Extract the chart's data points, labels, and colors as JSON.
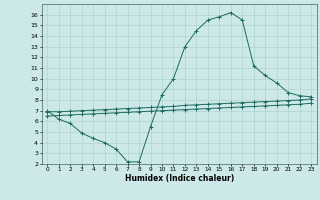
{
  "xlabel": "Humidex (Indice chaleur)",
  "bg_color": "#cce8e8",
  "grid_color": "#aacccc",
  "line_color": "#1e6b5e",
  "xlim": [
    -0.5,
    23.5
  ],
  "ylim": [
    2,
    17
  ],
  "xticks": [
    0,
    1,
    2,
    3,
    4,
    5,
    6,
    7,
    8,
    9,
    10,
    11,
    12,
    13,
    14,
    15,
    16,
    17,
    18,
    19,
    20,
    21,
    22,
    23
  ],
  "yticks": [
    2,
    3,
    4,
    5,
    6,
    7,
    8,
    9,
    10,
    11,
    12,
    13,
    14,
    15,
    16
  ],
  "line1_x": [
    0,
    1,
    2,
    3,
    4,
    5,
    6,
    7,
    8,
    9,
    10,
    11,
    12,
    13,
    14,
    15,
    16,
    17,
    18,
    19,
    20,
    21,
    22,
    23
  ],
  "line1_y": [
    7.0,
    6.2,
    5.8,
    4.9,
    4.4,
    4.0,
    3.4,
    2.2,
    2.2,
    5.5,
    8.5,
    10.0,
    13.0,
    14.5,
    15.5,
    15.8,
    16.2,
    15.5,
    11.2,
    10.3,
    9.6,
    8.7,
    8.4,
    8.3
  ],
  "line2_x": [
    0,
    1,
    2,
    3,
    4,
    5,
    6,
    7,
    8,
    9,
    10,
    11,
    12,
    13,
    14,
    15,
    16,
    17,
    18,
    19,
    20,
    21,
    22,
    23
  ],
  "line2_y": [
    6.9,
    6.9,
    6.95,
    7.0,
    7.05,
    7.1,
    7.15,
    7.2,
    7.25,
    7.3,
    7.35,
    7.4,
    7.5,
    7.55,
    7.6,
    7.65,
    7.7,
    7.75,
    7.8,
    7.85,
    7.9,
    7.95,
    8.0,
    8.1
  ],
  "line3_x": [
    0,
    1,
    2,
    3,
    4,
    5,
    6,
    7,
    8,
    9,
    10,
    11,
    12,
    13,
    14,
    15,
    16,
    17,
    18,
    19,
    20,
    21,
    22,
    23
  ],
  "line3_y": [
    6.5,
    6.55,
    6.6,
    6.65,
    6.7,
    6.75,
    6.8,
    6.85,
    6.9,
    6.95,
    7.0,
    7.05,
    7.1,
    7.15,
    7.2,
    7.25,
    7.3,
    7.35,
    7.4,
    7.45,
    7.5,
    7.55,
    7.6,
    7.7
  ],
  "figsize": [
    3.2,
    2.0
  ],
  "dpi": 100,
  "marker": "+"
}
